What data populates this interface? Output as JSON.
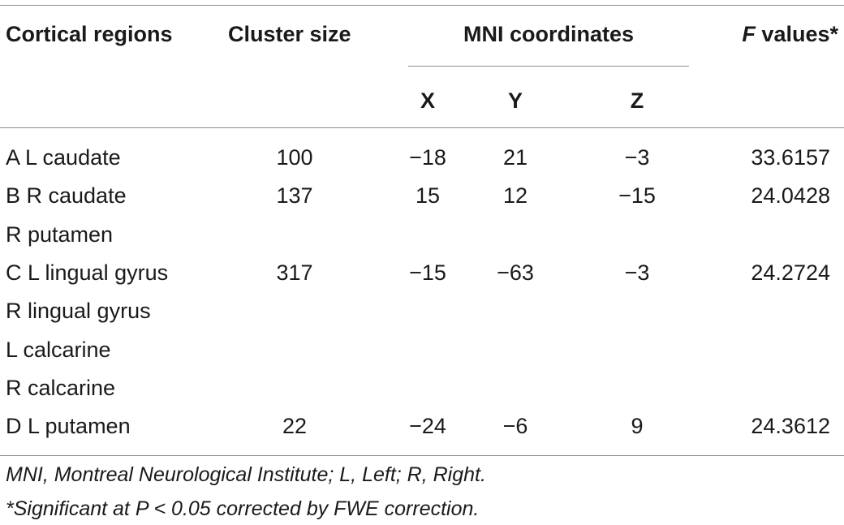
{
  "table": {
    "headers": {
      "region": "Cortical regions",
      "cluster": "Cluster size",
      "mni": "MNI coordinates",
      "f_italic": "F",
      "f_rest": " values*",
      "x": "X",
      "y": "Y",
      "z": "Z"
    },
    "rows": [
      {
        "region": "A L caudate",
        "cluster": "100",
        "x": "−18",
        "y": "21",
        "z": "−3",
        "f": "33.6157"
      },
      {
        "region": "B R caudate",
        "cluster": "137",
        "x": "15",
        "y": "12",
        "z": "−15",
        "f": "24.0428"
      },
      {
        "region": "R putamen",
        "cluster": "",
        "x": "",
        "y": "",
        "z": "",
        "f": ""
      },
      {
        "region": "C L lingual gyrus",
        "cluster": "317",
        "x": "−15",
        "y": "−63",
        "z": "−3",
        "f": "24.2724"
      },
      {
        "region": "R lingual gyrus",
        "cluster": "",
        "x": "",
        "y": "",
        "z": "",
        "f": ""
      },
      {
        "region": "L calcarine",
        "cluster": "",
        "x": "",
        "y": "",
        "z": "",
        "f": ""
      },
      {
        "region": "R calcarine",
        "cluster": "",
        "x": "",
        "y": "",
        "z": "",
        "f": ""
      },
      {
        "region": "D L putamen",
        "cluster": "22",
        "x": "−24",
        "y": "−6",
        "z": "9",
        "f": "24.3612"
      }
    ]
  },
  "footnotes": {
    "line1": "MNI, Montreal Neurological Institute; L, Left; R, Right.",
    "line2": "*Significant at P < 0.05 corrected by FWE correction."
  }
}
